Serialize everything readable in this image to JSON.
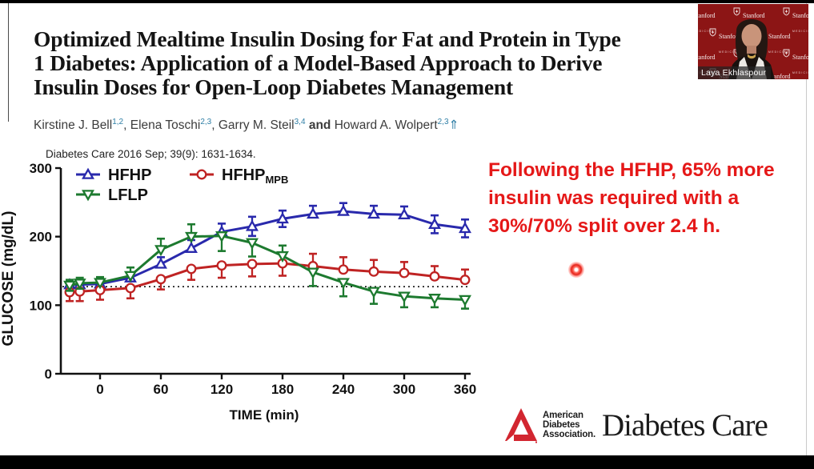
{
  "slide": {
    "title_lines": [
      "Optimized Mealtime Insulin Dosing for Fat and Protein in Type",
      "1 Diabetes: Application of a Model-Based Approach to Derive",
      "Insulin Doses for Open-Loop Diabetes Management"
    ],
    "authors": [
      {
        "t": "Kirstine J. Bell",
        "sup": "1,2"
      },
      {
        "t": ", "
      },
      {
        "t": "Elena Toschi",
        "sup": "2,3"
      },
      {
        "t": ", "
      },
      {
        "t": "Garry M. Steil",
        "sup": "3,4"
      },
      {
        "t": " and ",
        "bold": true
      },
      {
        "t": "Howard A. Wolpert",
        "sup": "2,3"
      },
      {
        "t": "⇑",
        "accent": true
      }
    ],
    "superscript_color": "#2f7fa6",
    "citation": "Diabetes Care 2016 Sep; 39(9): 1631-1634.",
    "annotation": {
      "lines": [
        "Following the HFHP, 65% more",
        "insulin was required with a",
        "30%/70% split over 2.4 h."
      ],
      "color": "#e51818"
    }
  },
  "chart_data": {
    "type": "line",
    "xlabel": "TIME (min)",
    "ylabel": "GLUCOSE (mg/dL)",
    "xlim": [
      -40,
      372
    ],
    "ylim": [
      0,
      300
    ],
    "xticks": [
      0,
      60,
      120,
      180,
      240,
      300,
      360
    ],
    "yticks": [
      0,
      100,
      200,
      300
    ],
    "ref_line_y": 127,
    "grid": false,
    "legend_position": "top-left-inside",
    "x": [
      -30,
      -20,
      0,
      30,
      60,
      90,
      120,
      150,
      180,
      210,
      240,
      270,
      300,
      330,
      360
    ],
    "series": [
      {
        "name": "HFHP",
        "sub": "",
        "color": "#2929ac",
        "marker": "triangle-up",
        "values": [
          130,
          130,
          131,
          140,
          160,
          183,
          207,
          215,
          226,
          233,
          237,
          233,
          232,
          218,
          212
        ],
        "err_up": [
          6,
          6,
          6,
          8,
          10,
          12,
          12,
          14,
          12,
          12,
          12,
          12,
          12,
          13,
          13
        ],
        "err_down": [
          6,
          6,
          6,
          0,
          0,
          0,
          0,
          14,
          12,
          0,
          0,
          0,
          0,
          13,
          13
        ]
      },
      {
        "name": "HFHP",
        "sub": "MPB",
        "color": "#bf2323",
        "marker": "circle",
        "values": [
          119,
          120,
          122,
          125,
          138,
          153,
          158,
          160,
          161,
          157,
          152,
          149,
          147,
          142,
          137
        ],
        "err_up": [
          0,
          0,
          0,
          0,
          0,
          0,
          0,
          0,
          0,
          18,
          18,
          17,
          16,
          15,
          15
        ],
        "err_down": [
          13,
          14,
          14,
          15,
          15,
          16,
          18,
          18,
          18,
          0,
          0,
          0,
          0,
          0,
          0
        ]
      },
      {
        "name": "LFLP",
        "sub": "",
        "color": "#1d7a2f",
        "marker": "triangle-down",
        "values": [
          129,
          132,
          133,
          143,
          181,
          200,
          201,
          191,
          172,
          148,
          133,
          120,
          113,
          110,
          108
        ],
        "err_up": [
          8,
          8,
          8,
          12,
          16,
          18,
          0,
          0,
          15,
          0,
          0,
          0,
          0,
          0,
          0
        ],
        "err_down": [
          8,
          8,
          0,
          0,
          0,
          0,
          22,
          20,
          0,
          20,
          20,
          18,
          16,
          13,
          13
        ]
      }
    ]
  },
  "footer": {
    "org_lines": [
      "American",
      "Diabetes",
      "Association."
    ],
    "journal": "Diabetes Care",
    "triangle_color": "#d22630"
  },
  "webcam": {
    "name_label": "Laya Ekhlaspour",
    "backdrop_color": "#8c1515",
    "backdrop_text_primary": "Stanford",
    "backdrop_text_secondary": "MEDICINE"
  }
}
